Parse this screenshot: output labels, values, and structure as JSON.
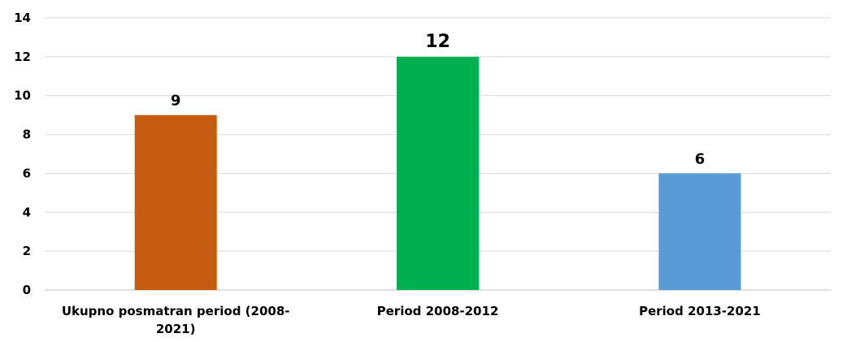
{
  "chart_data": {
    "type": "bar",
    "title": "",
    "xlabel": "",
    "ylabel": "",
    "categories": [
      "Ukupno posmatran period (2008-2021)",
      "Period 2008-2012",
      "Period 2013-2021"
    ],
    "category_lines": [
      [
        "Ukupno posmatran period (2008-",
        "2021)"
      ],
      [
        "Period 2008-2012"
      ],
      [
        "Period 2013-2021"
      ]
    ],
    "values": [
      9,
      12,
      6
    ],
    "data_labels": [
      "9",
      "12",
      "6"
    ],
    "colors": [
      "#C55A11",
      "#00B050",
      "#5B9BD5"
    ],
    "ylim": [
      0,
      14
    ],
    "yticks": [
      "0",
      "2",
      "4",
      "6",
      "8",
      "10",
      "12",
      "14"
    ],
    "grid": true,
    "legend": "none"
  }
}
